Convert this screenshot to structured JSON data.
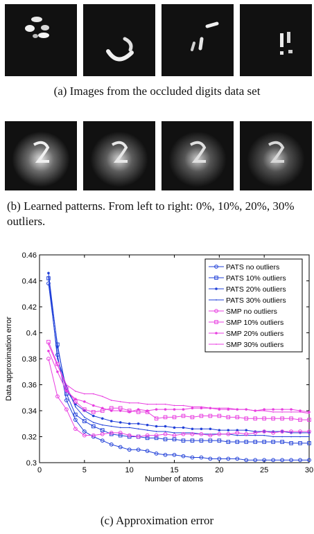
{
  "panel_a": {
    "caption": "(a) Images from the occluded digits data set",
    "thumbnails": [
      {
        "name": "occluded-digit-1",
        "shape": "blobs"
      },
      {
        "name": "occluded-digit-2",
        "shape": "hook"
      },
      {
        "name": "occluded-digit-3",
        "shape": "strokes"
      },
      {
        "name": "occluded-digit-4",
        "shape": "dots"
      }
    ]
  },
  "panel_b": {
    "caption": "(b) Learned patterns. From left to right: 0%, 10%, 20%, 30% outliers.",
    "thumbnails": [
      {
        "name": "pattern-0pct"
      },
      {
        "name": "pattern-10pct"
      },
      {
        "name": "pattern-20pct"
      },
      {
        "name": "pattern-30pct"
      }
    ]
  },
  "panel_c": {
    "caption": "(c) Approximation error"
  },
  "chart_data": {
    "type": "line",
    "xlabel": "Number of atoms",
    "ylabel": "Data approximation error",
    "xlim": [
      0,
      30
    ],
    "ylim": [
      0.3,
      0.46
    ],
    "xticks": [
      "0",
      "5",
      "10",
      "15",
      "20",
      "25",
      "30"
    ],
    "yticks": [
      "0.3",
      "0.32",
      "0.34",
      "0.36",
      "0.38",
      "0.4",
      "0.42",
      "0.44",
      "0.46"
    ],
    "legend_position": "top-right",
    "x": [
      1,
      2,
      3,
      4,
      5,
      6,
      7,
      8,
      9,
      10,
      11,
      12,
      13,
      14,
      15,
      16,
      17,
      18,
      19,
      20,
      21,
      22,
      23,
      24,
      25,
      26,
      27,
      28,
      29,
      30
    ],
    "series": [
      {
        "name": "PATS no outliers",
        "color": "#1f3fd8",
        "marker": "circle",
        "values": [
          0.438,
          0.383,
          0.348,
          0.333,
          0.324,
          0.32,
          0.317,
          0.314,
          0.312,
          0.31,
          0.31,
          0.309,
          0.307,
          0.306,
          0.306,
          0.305,
          0.304,
          0.304,
          0.303,
          0.303,
          0.303,
          0.303,
          0.302,
          0.302,
          0.302,
          0.302,
          0.302,
          0.302,
          0.302,
          0.302
        ]
      },
      {
        "name": "PATS 10% outliers",
        "color": "#1f3fd8",
        "marker": "square",
        "values": [
          0.442,
          0.391,
          0.353,
          0.337,
          0.332,
          0.328,
          0.325,
          0.322,
          0.321,
          0.32,
          0.32,
          0.319,
          0.319,
          0.318,
          0.318,
          0.317,
          0.317,
          0.317,
          0.317,
          0.317,
          0.316,
          0.316,
          0.316,
          0.316,
          0.316,
          0.316,
          0.316,
          0.315,
          0.315,
          0.315
        ]
      },
      {
        "name": "PATS 20% outliers",
        "color": "#1f3fd8",
        "marker": "dot",
        "values": [
          0.446,
          0.389,
          0.356,
          0.345,
          0.34,
          0.336,
          0.334,
          0.332,
          0.331,
          0.33,
          0.33,
          0.329,
          0.328,
          0.328,
          0.327,
          0.327,
          0.326,
          0.326,
          0.326,
          0.325,
          0.325,
          0.325,
          0.325,
          0.324,
          0.324,
          0.324,
          0.324,
          0.323,
          0.323,
          0.323
        ]
      },
      {
        "name": "PATS 30% outliers",
        "color": "#1f3fd8",
        "marker": "point",
        "values": [
          0.443,
          0.38,
          0.359,
          0.343,
          0.335,
          0.331,
          0.329,
          0.328,
          0.327,
          0.327,
          0.326,
          0.325,
          0.324,
          0.324,
          0.323,
          0.323,
          0.323,
          0.322,
          0.322,
          0.322,
          0.322,
          0.321,
          0.321,
          0.321,
          0.321,
          0.32,
          0.32,
          0.32,
          0.32,
          0.32
        ]
      },
      {
        "name": "SMP no outliers",
        "color": "#e83ee0",
        "marker": "circle",
        "values": [
          0.38,
          0.351,
          0.341,
          0.326,
          0.321,
          0.321,
          0.322,
          0.323,
          0.323,
          0.321,
          0.32,
          0.321,
          0.321,
          0.322,
          0.321,
          0.322,
          0.322,
          0.322,
          0.321,
          0.322,
          0.322,
          0.323,
          0.322,
          0.323,
          0.324,
          0.323,
          0.324,
          0.324,
          0.324,
          0.324
        ]
      },
      {
        "name": "SMP 10% outliers",
        "color": "#e83ee0",
        "marker": "square",
        "values": [
          0.393,
          0.376,
          0.357,
          0.347,
          0.341,
          0.339,
          0.34,
          0.342,
          0.342,
          0.34,
          0.339,
          0.339,
          0.334,
          0.335,
          0.335,
          0.336,
          0.335,
          0.336,
          0.336,
          0.336,
          0.335,
          0.335,
          0.334,
          0.334,
          0.334,
          0.334,
          0.334,
          0.334,
          0.333,
          0.333
        ]
      },
      {
        "name": "SMP 20% outliers",
        "color": "#e83ee0",
        "marker": "dot",
        "values": [
          0.386,
          0.37,
          0.355,
          0.349,
          0.347,
          0.344,
          0.342,
          0.34,
          0.34,
          0.339,
          0.341,
          0.34,
          0.341,
          0.341,
          0.341,
          0.341,
          0.342,
          0.342,
          0.342,
          0.341,
          0.341,
          0.341,
          0.341,
          0.34,
          0.341,
          0.341,
          0.341,
          0.341,
          0.34,
          0.339
        ]
      },
      {
        "name": "SMP 30% outliers",
        "color": "#e83ee0",
        "marker": "point",
        "values": [
          0.391,
          0.375,
          0.36,
          0.355,
          0.353,
          0.353,
          0.351,
          0.348,
          0.347,
          0.346,
          0.346,
          0.345,
          0.345,
          0.345,
          0.344,
          0.344,
          0.343,
          0.343,
          0.342,
          0.342,
          0.342,
          0.341,
          0.341,
          0.34,
          0.34,
          0.339,
          0.339,
          0.339,
          0.339,
          0.338
        ]
      }
    ]
  }
}
